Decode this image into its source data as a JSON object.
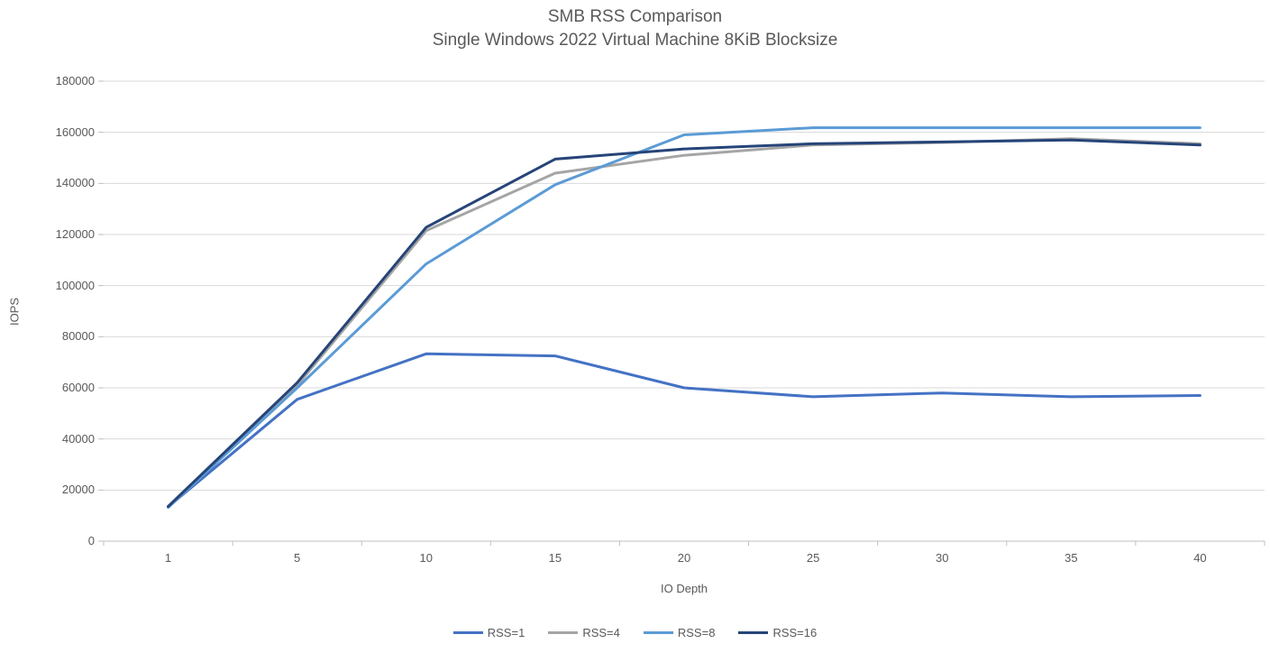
{
  "title": "SMB RSS Comparison",
  "subtitle": "Single Windows 2022 Virtual Machine 8KiB Blocksize",
  "chart_data": {
    "type": "line",
    "title": "SMB RSS Comparison",
    "subtitle": "Single Windows 2022 Virtual Machine 8KiB Blocksize",
    "xlabel": "IO Depth",
    "ylabel": "IOPS",
    "categories": [
      "1",
      "5",
      "10",
      "15",
      "20",
      "25",
      "30",
      "35",
      "40"
    ],
    "ylim": [
      0,
      180000
    ],
    "ytick_step": 20000,
    "grid": true,
    "legend_position": "bottom",
    "series": [
      {
        "name": "RSS=1",
        "color": "#4472C4",
        "values": [
          13500,
          55500,
          73300,
          72500,
          60000,
          56500,
          58000,
          56500,
          57000
        ]
      },
      {
        "name": "RSS=4",
        "color": "#A5A5A5",
        "values": [
          13300,
          61000,
          121500,
          144000,
          151000,
          155000,
          156000,
          157500,
          155500
        ]
      },
      {
        "name": "RSS=8",
        "color": "#5B9BD5",
        "values": [
          13200,
          60000,
          108500,
          139500,
          159000,
          161800,
          161800,
          161800,
          161800
        ]
      },
      {
        "name": "RSS=16",
        "color": "#264478",
        "values": [
          13600,
          62000,
          122800,
          149500,
          153500,
          155500,
          156200,
          157000,
          155000
        ]
      }
    ]
  },
  "style": {
    "grid_color": "#D9D9D9",
    "axis_color": "#BFBFBF",
    "text_color": "#595959",
    "background": "#FFFFFF"
  }
}
